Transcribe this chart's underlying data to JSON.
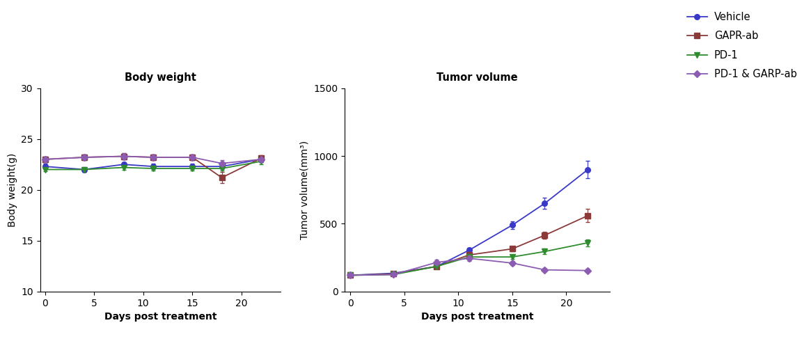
{
  "bw_days": [
    0,
    4,
    8,
    11,
    15,
    18,
    22
  ],
  "bw_vehicle": [
    22.3,
    22.0,
    22.5,
    22.3,
    22.3,
    22.3,
    23.0
  ],
  "bw_vehicle_err": [
    0.25,
    0.25,
    0.25,
    0.25,
    0.25,
    0.25,
    0.3
  ],
  "bw_gapr": [
    23.0,
    23.2,
    23.3,
    23.2,
    23.2,
    21.2,
    23.1
  ],
  "bw_gapr_err": [
    0.3,
    0.3,
    0.3,
    0.3,
    0.3,
    0.55,
    0.3
  ],
  "bw_pd1": [
    22.0,
    22.0,
    22.2,
    22.1,
    22.1,
    22.1,
    22.8
  ],
  "bw_pd1_err": [
    0.2,
    0.2,
    0.2,
    0.2,
    0.2,
    0.2,
    0.3
  ],
  "bw_combo": [
    23.0,
    23.2,
    23.3,
    23.2,
    23.2,
    22.6,
    23.0
  ],
  "bw_combo_err": [
    0.3,
    0.3,
    0.3,
    0.3,
    0.3,
    0.3,
    0.3
  ],
  "tv_days": [
    0,
    4,
    8,
    11,
    15,
    18,
    22
  ],
  "tv_vehicle": [
    120,
    135,
    185,
    305,
    490,
    650,
    900
  ],
  "tv_vehicle_err": [
    8,
    10,
    12,
    20,
    30,
    40,
    65
  ],
  "tv_gapr": [
    120,
    130,
    185,
    270,
    315,
    415,
    560
  ],
  "tv_gapr_err": [
    8,
    10,
    12,
    18,
    20,
    28,
    50
  ],
  "tv_pd1": [
    120,
    125,
    185,
    255,
    255,
    295,
    360
  ],
  "tv_pd1_err": [
    8,
    10,
    12,
    18,
    15,
    20,
    25
  ],
  "tv_combo": [
    120,
    125,
    215,
    245,
    210,
    160,
    155
  ],
  "tv_combo_err": [
    8,
    10,
    18,
    18,
    15,
    12,
    12
  ],
  "color_vehicle": "#3939C8",
  "color_gapr": "#8B3A3A",
  "color_pd1": "#2E8B2E",
  "color_combo": "#8B5CB1",
  "bw_title": "Body weight",
  "tv_title": "Tumor volume",
  "bw_ylabel": "Body weight(g)",
  "tv_ylabel": "Tumor volume(mm³)",
  "xlabel": "Days post treatment",
  "bw_ylim": [
    10,
    30
  ],
  "bw_yticks": [
    10,
    15,
    20,
    25,
    30
  ],
  "bw_xlim": [
    -0.5,
    24
  ],
  "bw_xticks": [
    0,
    5,
    10,
    15,
    20
  ],
  "tv_ylim": [
    0,
    1500
  ],
  "tv_yticks": [
    0,
    500,
    1000,
    1500
  ],
  "tv_xlim": [
    -0.5,
    24
  ],
  "tv_xticks": [
    0,
    5,
    10,
    15,
    20
  ],
  "legend_labels": [
    "Vehicle",
    "GAPR-ab",
    "PD-1",
    "PD-1 & GARP-ab"
  ],
  "bg_color": "#ffffff"
}
